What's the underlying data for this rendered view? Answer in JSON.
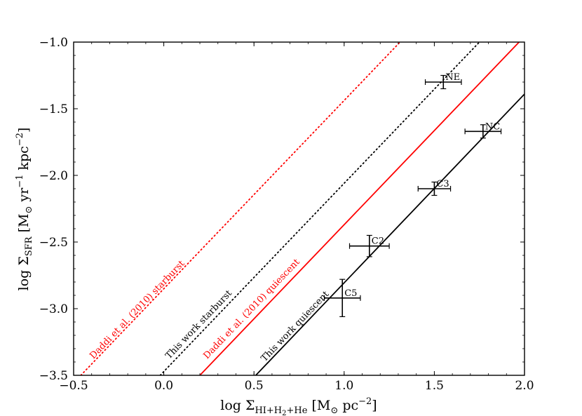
{
  "chart_data": {
    "type": "scatter",
    "xlabel": {
      "main": "log Σ",
      "sub": "HI+H",
      "sub2": "2",
      "sub3": "+He",
      "unit_pre": " [M",
      "unit_sun": "⊙",
      "unit_post": " pc",
      "unit_exp": "−2",
      "close": "]"
    },
    "ylabel": {
      "main": "log Σ",
      "sub": "SFR",
      "unit_pre": " [M",
      "unit_sun": "⊙",
      "unit_mid": " yr",
      "unit_exp1": "−1",
      "unit_mid2": " kpc",
      "unit_exp2": "−2",
      "close": "]"
    },
    "xlim": [
      -0.5,
      2.0
    ],
    "ylim": [
      -3.5,
      -1.0
    ],
    "xticks": [
      {
        "value": -0.5,
        "label": "−0.5"
      },
      {
        "value": 0.0,
        "label": "0.0"
      },
      {
        "value": 0.5,
        "label": "0.5"
      },
      {
        "value": 1.0,
        "label": "1.0"
      },
      {
        "value": 1.5,
        "label": "1.5"
      },
      {
        "value": 2.0,
        "label": "2.0"
      }
    ],
    "yticks": [
      {
        "value": -1.0,
        "label": "−1.0"
      },
      {
        "value": -1.5,
        "label": "−1.5"
      },
      {
        "value": -2.0,
        "label": "−2.0"
      },
      {
        "value": -2.5,
        "label": "−2.5"
      },
      {
        "value": -3.0,
        "label": "−3.0"
      },
      {
        "value": -3.5,
        "label": "−3.5"
      }
    ],
    "points": [
      {
        "label": "NE",
        "x": 1.55,
        "y": -1.3,
        "xerr": 0.1,
        "yerr": 0.05
      },
      {
        "label": "NC",
        "x": 1.77,
        "y": -1.67,
        "xerr": 0.1,
        "yerr": 0.05
      },
      {
        "label": "C3",
        "x": 1.5,
        "y": -2.1,
        "xerr": 0.09,
        "yerr": 0.05
      },
      {
        "label": "C2",
        "x": 1.14,
        "y": -2.53,
        "xerr": 0.11,
        "yerr": 0.08
      },
      {
        "label": "C5",
        "x": 0.99,
        "y": -2.92,
        "xerr": 0.1,
        "yerr": 0.14
      }
    ],
    "lines": [
      {
        "label": "This work quiescent",
        "color": "#000000",
        "style": "solid",
        "p1": [
          0.51,
          -3.5
        ],
        "p2": [
          2.0,
          -1.39
        ],
        "label_at": [
          0.56,
          -3.4
        ]
      },
      {
        "label": "Daddi et al. (2010) quiescent",
        "color": "#ff0000",
        "style": "solid",
        "p1": [
          0.2,
          -3.5
        ],
        "p2": [
          1.97,
          -1.0
        ],
        "label_at": [
          0.24,
          -3.38
        ]
      },
      {
        "label": "This work starburst",
        "color": "#000000",
        "style": "dotted",
        "p1": [
          -0.02,
          -3.5
        ],
        "p2": [
          1.75,
          -1.0
        ],
        "label_at": [
          0.03,
          -3.38
        ]
      },
      {
        "label": "Daddi et al. (2010) starburst",
        "color": "#ff0000",
        "style": "dotted",
        "p1": [
          -0.46,
          -3.5
        ],
        "p2": [
          1.31,
          -1.0
        ],
        "label_at": [
          -0.39,
          -3.38
        ]
      }
    ]
  }
}
